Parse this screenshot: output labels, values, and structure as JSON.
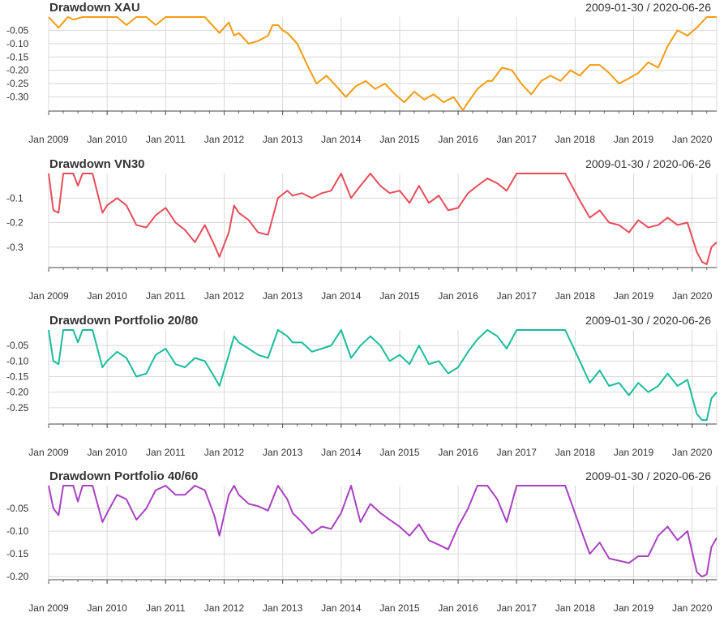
{
  "chart_data": [
    {
      "type": "line",
      "title": "Drawdown XAU",
      "range_label": "2009-01-30 / 2020-06-26",
      "color": "#f39c12",
      "ylim": [
        -0.35,
        0
      ],
      "yticks": [
        -0.05,
        -0.1,
        -0.15,
        -0.2,
        -0.25,
        -0.3
      ],
      "ytick_labels": [
        "-0.05",
        "-0.10",
        "-0.15",
        "-0.20",
        "-0.25",
        "-0.30"
      ],
      "xticks": [
        2009,
        2010,
        2011,
        2012,
        2013,
        2014,
        2015,
        2016,
        2017,
        2018,
        2019,
        2020
      ],
      "xtick_labels": [
        "Jan 2009",
        "Jan 2010",
        "Jan 2011",
        "Jan 2012",
        "Jan 2013",
        "Jan 2014",
        "Jan 2015",
        "Jan 2016",
        "Jan 2017",
        "Jan 2018",
        "Jan 2019",
        "Jan 2020"
      ],
      "x": [
        2009.0,
        2009.17,
        2009.33,
        2009.42,
        2009.58,
        2009.75,
        2009.92,
        2010.17,
        2010.33,
        2010.5,
        2010.67,
        2010.83,
        2011.0,
        2011.17,
        2011.33,
        2011.5,
        2011.67,
        2011.92,
        2012.08,
        2012.17,
        2012.25,
        2012.42,
        2012.58,
        2012.75,
        2012.83,
        2012.92,
        2013.0,
        2013.08,
        2013.25,
        2013.42,
        2013.58,
        2013.75,
        2013.92,
        2014.08,
        2014.25,
        2014.42,
        2014.58,
        2014.75,
        2014.92,
        2015.08,
        2015.25,
        2015.42,
        2015.58,
        2015.75,
        2015.92,
        2016.08,
        2016.17,
        2016.33,
        2016.5,
        2016.58,
        2016.75,
        2016.92,
        2017.08,
        2017.25,
        2017.42,
        2017.58,
        2017.75,
        2017.92,
        2018.08,
        2018.25,
        2018.42,
        2018.58,
        2018.75,
        2018.92,
        2019.08,
        2019.25,
        2019.42,
        2019.58,
        2019.75,
        2019.92,
        2020.08,
        2020.25,
        2020.42
      ],
      "values": [
        0.0,
        -0.04,
        0.0,
        -0.01,
        0.0,
        0.0,
        0.0,
        0.0,
        -0.03,
        0.0,
        0.0,
        -0.03,
        0.0,
        0.0,
        0.0,
        0.0,
        0.0,
        -0.06,
        -0.02,
        -0.07,
        -0.06,
        -0.1,
        -0.09,
        -0.07,
        -0.03,
        -0.03,
        -0.05,
        -0.06,
        -0.1,
        -0.18,
        -0.25,
        -0.22,
        -0.26,
        -0.3,
        -0.26,
        -0.24,
        -0.27,
        -0.25,
        -0.29,
        -0.32,
        -0.28,
        -0.31,
        -0.29,
        -0.32,
        -0.3,
        -0.35,
        -0.32,
        -0.27,
        -0.24,
        -0.24,
        -0.19,
        -0.2,
        -0.25,
        -0.29,
        -0.24,
        -0.22,
        -0.24,
        -0.2,
        -0.22,
        -0.18,
        -0.18,
        -0.21,
        -0.25,
        -0.23,
        -0.21,
        -0.17,
        -0.19,
        -0.11,
        -0.05,
        -0.07,
        -0.04,
        0.0,
        0.0
      ]
    },
    {
      "type": "line",
      "title": "Drawdown VN30",
      "range_label": "2009-01-30 / 2020-06-26",
      "color": "#e74c5a",
      "ylim": [
        -0.38,
        0
      ],
      "yticks": [
        -0.1,
        -0.2,
        -0.3
      ],
      "ytick_labels": [
        "-0.1",
        "-0.2",
        "-0.3"
      ],
      "xticks": [
        2009,
        2010,
        2011,
        2012,
        2013,
        2014,
        2015,
        2016,
        2017,
        2018,
        2019,
        2020
      ],
      "xtick_labels": [
        "Jan 2009",
        "Jan 2010",
        "Jan 2011",
        "Jan 2012",
        "Jan 2013",
        "Jan 2014",
        "Jan 2015",
        "Jan 2016",
        "Jan 2017",
        "Jan 2018",
        "Jan 2019",
        "Jan 2020"
      ],
      "x": [
        2009.0,
        2009.08,
        2009.17,
        2009.25,
        2009.42,
        2009.5,
        2009.58,
        2009.75,
        2009.92,
        2010.0,
        2010.17,
        2010.33,
        2010.5,
        2010.67,
        2010.83,
        2011.0,
        2011.17,
        2011.33,
        2011.5,
        2011.67,
        2011.83,
        2011.92,
        2012.08,
        2012.17,
        2012.25,
        2012.42,
        2012.58,
        2012.75,
        2012.92,
        2013.08,
        2013.17,
        2013.33,
        2013.5,
        2013.67,
        2013.83,
        2014.0,
        2014.17,
        2014.33,
        2014.5,
        2014.67,
        2014.83,
        2015.0,
        2015.17,
        2015.33,
        2015.5,
        2015.67,
        2015.83,
        2016.0,
        2016.17,
        2016.33,
        2016.5,
        2016.67,
        2016.83,
        2017.0,
        2017.17,
        2017.5,
        2017.83,
        2018.08,
        2018.25,
        2018.42,
        2018.58,
        2018.75,
        2018.92,
        2019.08,
        2019.25,
        2019.42,
        2019.58,
        2019.75,
        2019.92,
        2020.08,
        2020.17,
        2020.25,
        2020.33,
        2020.42
      ],
      "values": [
        0.0,
        -0.15,
        -0.16,
        0.0,
        0.0,
        -0.05,
        0.0,
        0.0,
        -0.16,
        -0.13,
        -0.1,
        -0.13,
        -0.21,
        -0.22,
        -0.17,
        -0.14,
        -0.2,
        -0.23,
        -0.28,
        -0.21,
        -0.29,
        -0.34,
        -0.24,
        -0.13,
        -0.16,
        -0.19,
        -0.24,
        -0.25,
        -0.1,
        -0.07,
        -0.09,
        -0.08,
        -0.1,
        -0.08,
        -0.07,
        0.0,
        -0.1,
        -0.05,
        0.0,
        -0.05,
        -0.08,
        -0.07,
        -0.12,
        -0.05,
        -0.12,
        -0.09,
        -0.15,
        -0.14,
        -0.08,
        -0.05,
        -0.02,
        -0.04,
        -0.07,
        0.0,
        0.0,
        0.0,
        0.0,
        -0.11,
        -0.18,
        -0.15,
        -0.2,
        -0.21,
        -0.24,
        -0.19,
        -0.22,
        -0.21,
        -0.18,
        -0.21,
        -0.2,
        -0.32,
        -0.36,
        -0.37,
        -0.3,
        -0.28
      ]
    },
    {
      "type": "line",
      "title": "Drawdown Portfolio 20/80",
      "range_label": "2009-01-30 / 2020-06-26",
      "color": "#1abc9c",
      "ylim": [
        -0.3,
        0
      ],
      "yticks": [
        -0.05,
        -0.1,
        -0.15,
        -0.2,
        -0.25
      ],
      "ytick_labels": [
        "-0.05",
        "-0.10",
        "-0.15",
        "-0.20",
        "-0.25"
      ],
      "xticks": [
        2009,
        2010,
        2011,
        2012,
        2013,
        2014,
        2015,
        2016,
        2017,
        2018,
        2019,
        2020
      ],
      "xtick_labels": [
        "Jan 2009",
        "Jan 2010",
        "Jan 2011",
        "Jan 2012",
        "Jan 2013",
        "Jan 2014",
        "Jan 2015",
        "Jan 2016",
        "Jan 2017",
        "Jan 2018",
        "Jan 2019",
        "Jan 2020"
      ],
      "x": [
        2009.0,
        2009.08,
        2009.17,
        2009.25,
        2009.42,
        2009.5,
        2009.58,
        2009.75,
        2009.92,
        2010.0,
        2010.17,
        2010.33,
        2010.5,
        2010.67,
        2010.83,
        2011.0,
        2011.17,
        2011.33,
        2011.5,
        2011.67,
        2011.83,
        2011.92,
        2012.08,
        2012.17,
        2012.25,
        2012.42,
        2012.58,
        2012.75,
        2012.92,
        2013.08,
        2013.17,
        2013.33,
        2013.5,
        2013.67,
        2013.83,
        2014.0,
        2014.17,
        2014.33,
        2014.5,
        2014.67,
        2014.83,
        2015.0,
        2015.17,
        2015.33,
        2015.5,
        2015.67,
        2015.83,
        2016.0,
        2016.17,
        2016.33,
        2016.5,
        2016.67,
        2016.83,
        2017.0,
        2017.17,
        2017.5,
        2017.83,
        2018.08,
        2018.25,
        2018.42,
        2018.58,
        2018.75,
        2018.92,
        2019.08,
        2019.25,
        2019.42,
        2019.58,
        2019.75,
        2019.92,
        2020.08,
        2020.17,
        2020.25,
        2020.33,
        2020.42
      ],
      "values": [
        0.0,
        -0.1,
        -0.11,
        0.0,
        0.0,
        -0.04,
        0.0,
        0.0,
        -0.12,
        -0.1,
        -0.07,
        -0.09,
        -0.15,
        -0.14,
        -0.08,
        -0.06,
        -0.11,
        -0.12,
        -0.09,
        -0.1,
        -0.15,
        -0.18,
        -0.08,
        -0.02,
        -0.04,
        -0.06,
        -0.08,
        -0.09,
        0.0,
        -0.02,
        -0.04,
        -0.04,
        -0.07,
        -0.06,
        -0.05,
        0.0,
        -0.09,
        -0.05,
        -0.02,
        -0.05,
        -0.1,
        -0.08,
        -0.11,
        -0.05,
        -0.11,
        -0.1,
        -0.14,
        -0.12,
        -0.07,
        -0.03,
        0.0,
        -0.02,
        -0.06,
        0.0,
        0.0,
        0.0,
        0.0,
        -0.1,
        -0.17,
        -0.13,
        -0.18,
        -0.17,
        -0.21,
        -0.17,
        -0.2,
        -0.18,
        -0.14,
        -0.18,
        -0.16,
        -0.27,
        -0.29,
        -0.29,
        -0.22,
        -0.2
      ]
    },
    {
      "type": "line",
      "title": "Drawdown Portfolio 40/60",
      "range_label": "2009-01-30 / 2020-06-26",
      "color": "#a742c0",
      "ylim": [
        -0.205,
        0
      ],
      "yticks": [
        -0.05,
        -0.1,
        -0.15,
        -0.2
      ],
      "ytick_labels": [
        "-0.05",
        "-0.10",
        "-0.15",
        "-0.20"
      ],
      "xticks": [
        2009,
        2010,
        2011,
        2012,
        2013,
        2014,
        2015,
        2016,
        2017,
        2018,
        2019,
        2020
      ],
      "xtick_labels": [
        "Jan 2009",
        "Jan 2010",
        "Jan 2011",
        "Jan 2012",
        "Jan 2013",
        "Jan 2014",
        "Jan 2015",
        "Jan 2016",
        "Jan 2017",
        "Jan 2018",
        "Jan 2019",
        "Jan 2020"
      ],
      "x": [
        2009.0,
        2009.08,
        2009.17,
        2009.25,
        2009.42,
        2009.5,
        2009.58,
        2009.75,
        2009.92,
        2010.0,
        2010.17,
        2010.33,
        2010.5,
        2010.67,
        2010.83,
        2011.0,
        2011.17,
        2011.33,
        2011.5,
        2011.67,
        2011.83,
        2011.92,
        2012.08,
        2012.17,
        2012.25,
        2012.42,
        2012.58,
        2012.75,
        2012.92,
        2013.08,
        2013.17,
        2013.33,
        2013.5,
        2013.67,
        2013.83,
        2014.0,
        2014.17,
        2014.33,
        2014.5,
        2014.67,
        2014.83,
        2015.0,
        2015.17,
        2015.33,
        2015.5,
        2015.67,
        2015.83,
        2016.0,
        2016.17,
        2016.33,
        2016.5,
        2016.67,
        2016.83,
        2017.0,
        2017.17,
        2017.5,
        2017.83,
        2018.08,
        2018.25,
        2018.42,
        2018.58,
        2018.75,
        2018.92,
        2019.08,
        2019.25,
        2019.42,
        2019.58,
        2019.75,
        2019.92,
        2020.08,
        2020.17,
        2020.25,
        2020.33,
        2020.42
      ],
      "values": [
        0.0,
        -0.05,
        -0.065,
        0.0,
        0.0,
        -0.035,
        0.0,
        0.0,
        -0.08,
        -0.06,
        -0.02,
        -0.03,
        -0.075,
        -0.05,
        -0.01,
        0.0,
        -0.02,
        -0.02,
        0.0,
        -0.01,
        -0.065,
        -0.11,
        -0.02,
        0.0,
        -0.02,
        -0.04,
        -0.045,
        -0.055,
        0.0,
        -0.03,
        -0.06,
        -0.08,
        -0.105,
        -0.09,
        -0.095,
        -0.06,
        0.0,
        -0.08,
        -0.04,
        -0.06,
        -0.075,
        -0.09,
        -0.11,
        -0.085,
        -0.12,
        -0.13,
        -0.14,
        -0.09,
        -0.05,
        0.0,
        0.0,
        -0.03,
        -0.08,
        0.0,
        0.0,
        0.0,
        0.0,
        -0.09,
        -0.15,
        -0.125,
        -0.16,
        -0.165,
        -0.17,
        -0.155,
        -0.155,
        -0.11,
        -0.09,
        -0.12,
        -0.1,
        -0.19,
        -0.2,
        -0.195,
        -0.135,
        -0.115
      ]
    }
  ]
}
